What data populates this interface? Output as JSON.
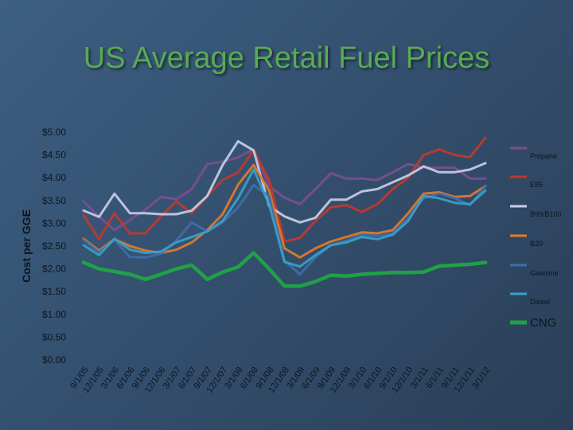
{
  "slide": {
    "title": "US Average Retail Fuel Prices"
  },
  "chart_data": {
    "type": "line",
    "ylabel": "Cost per GGE",
    "ylim": [
      0,
      5
    ],
    "yticks": [
      "$0.00",
      "$0.50",
      "$1.00",
      "$1.50",
      "$2.00",
      "$2.50",
      "$3.00",
      "$3.50",
      "$4.00",
      "$4.50",
      "$5.00"
    ],
    "x": [
      "9/1/05",
      "12/1/05",
      "3/1/06",
      "6/1/06",
      "9/1/06",
      "12/1/06",
      "3/1/07",
      "6/1/07",
      "9/1/07",
      "12/1/07",
      "3/1/08",
      "6/1/08",
      "9/1/08",
      "12/1/08",
      "3/1/09",
      "6/1/09",
      "9/1/09",
      "12/1/09",
      "3/1/10",
      "6/1/10",
      "9/1/10",
      "12/1/10",
      "3/1/11",
      "6/1/11",
      "9/1/11",
      "12/1/11",
      "3/1/12"
    ],
    "legend_position": "right",
    "series": [
      {
        "name": "Propane",
        "color": "#7b4f8f",
        "values": [
          3.48,
          3.15,
          2.85,
          3.07,
          3.3,
          3.58,
          3.53,
          3.75,
          4.3,
          4.35,
          4.45,
          4.62,
          3.82,
          3.56,
          3.42,
          3.75,
          4.1,
          3.98,
          3.98,
          3.95,
          4.12,
          4.3,
          4.22,
          4.22,
          4.22,
          3.98,
          3.98
        ]
      },
      {
        "name": "E85",
        "color": "#c0392b",
        "values": [
          3.18,
          2.65,
          3.22,
          2.78,
          2.78,
          3.15,
          3.48,
          3.22,
          3.6,
          3.95,
          4.12,
          4.6,
          3.96,
          2.6,
          2.68,
          3.05,
          3.35,
          3.4,
          3.25,
          3.42,
          3.75,
          4.0,
          4.5,
          4.62,
          4.5,
          4.45,
          4.88
        ]
      },
      {
        "name": "B99/B100",
        "color": "#c7cde6",
        "values": [
          3.28,
          3.14,
          3.65,
          3.22,
          3.22,
          3.2,
          3.2,
          3.28,
          3.6,
          4.28,
          4.8,
          4.6,
          3.38,
          3.15,
          3.02,
          3.12,
          3.52,
          3.52,
          3.7,
          3.75,
          3.9,
          4.05,
          4.25,
          4.12,
          4.12,
          4.18,
          4.32
        ]
      },
      {
        "name": "B20",
        "color": "#e07b2e",
        "values": [
          2.66,
          2.4,
          2.65,
          2.5,
          2.4,
          2.35,
          2.42,
          2.58,
          2.85,
          3.2,
          3.85,
          4.28,
          3.72,
          2.45,
          2.25,
          2.45,
          2.6,
          2.7,
          2.8,
          2.78,
          2.85,
          3.22,
          3.65,
          3.68,
          3.58,
          3.6,
          3.82
        ]
      },
      {
        "name": "Gasoline",
        "color": "#3f6ea8",
        "values": [
          2.64,
          2.36,
          2.64,
          2.26,
          2.25,
          2.33,
          2.62,
          3.02,
          2.82,
          3.02,
          3.35,
          3.84,
          3.6,
          2.18,
          1.88,
          2.25,
          2.52,
          2.62,
          2.75,
          2.72,
          2.78,
          3.12,
          3.55,
          3.65,
          3.55,
          3.4,
          3.82
        ]
      },
      {
        "name": "Diesel",
        "color": "#3aa0c9",
        "values": [
          2.52,
          2.3,
          2.66,
          2.42,
          2.35,
          2.38,
          2.58,
          2.7,
          2.82,
          3.05,
          3.55,
          4.18,
          3.42,
          2.15,
          2.05,
          2.3,
          2.52,
          2.58,
          2.7,
          2.65,
          2.75,
          3.05,
          3.6,
          3.55,
          3.45,
          3.42,
          3.72
        ]
      },
      {
        "name": "CNG",
        "color": "#1fa246",
        "values": [
          2.14,
          2.0,
          1.94,
          1.88,
          1.77,
          1.88,
          2.0,
          2.08,
          1.77,
          1.93,
          2.04,
          2.35,
          2.0,
          1.62,
          1.62,
          1.72,
          1.86,
          1.84,
          1.88,
          1.9,
          1.92,
          1.92,
          1.93,
          2.06,
          2.08,
          2.1,
          2.14
        ]
      }
    ]
  }
}
